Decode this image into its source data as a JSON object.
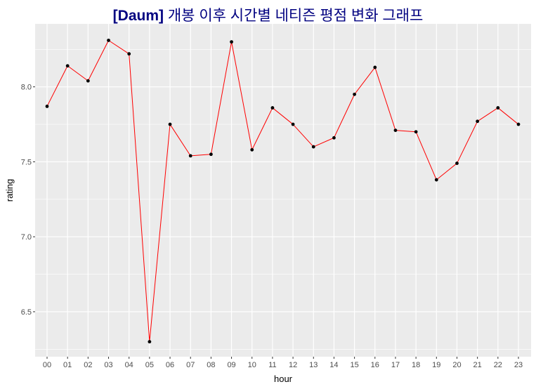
{
  "chart_data": {
    "type": "line",
    "title_tag": "[Daum]",
    "title_text": "개봉 이후 시간별 네티즌 평점 변화 그래프",
    "xlabel": "hour",
    "ylabel": "rating",
    "categories": [
      "00",
      "01",
      "02",
      "03",
      "04",
      "05",
      "06",
      "07",
      "08",
      "09",
      "10",
      "11",
      "12",
      "13",
      "14",
      "15",
      "16",
      "17",
      "18",
      "19",
      "20",
      "21",
      "22",
      "23"
    ],
    "values": [
      7.87,
      8.14,
      8.04,
      8.31,
      8.22,
      6.3,
      7.75,
      7.54,
      7.55,
      8.3,
      7.58,
      7.86,
      7.75,
      7.6,
      7.66,
      7.95,
      8.13,
      7.71,
      7.7,
      7.38,
      7.49,
      7.77,
      7.86,
      7.75
    ],
    "ylim": [
      6.2,
      8.42
    ],
    "yticks": [
      6.5,
      7.0,
      7.5,
      8.0
    ],
    "ytick_labels": [
      "6.5",
      "7.0",
      "7.5",
      "8.0"
    ],
    "grid": true,
    "colors": {
      "line": "#ff0000",
      "point": "#000000",
      "panel": "#ebebeb",
      "grid": "#ffffff",
      "title": "#000080"
    }
  }
}
